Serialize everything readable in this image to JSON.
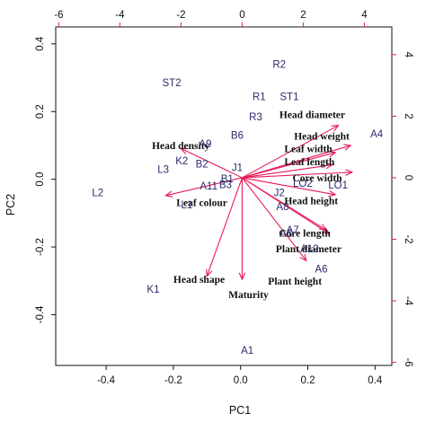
{
  "chart_data": {
    "type": "scatter",
    "title": "",
    "xlabel": "PC1",
    "ylabel": "PC2",
    "xlim": [
      -0.55,
      0.45
    ],
    "ylim": [
      -0.55,
      0.45
    ],
    "x_ticks": [
      "-0.4",
      "-0.2",
      "0.0",
      "0.2",
      "0.4"
    ],
    "y_ticks": [
      "-0.4",
      "-0.2",
      "0.0",
      "0.2",
      "0.4"
    ],
    "x_tick_values": [
      -0.4,
      -0.2,
      0.0,
      0.2,
      0.4
    ],
    "y_tick_values": [
      -0.4,
      -0.2,
      0.0,
      0.2,
      0.4
    ],
    "top_axis": {
      "lim": [
        -6.1,
        4.9
      ],
      "tick_values": [
        -6,
        -4,
        -2,
        0,
        2,
        4
      ],
      "ticks": [
        "-6",
        "-4",
        "-2",
        "0",
        "2",
        "4"
      ]
    },
    "right_axis": {
      "lim": [
        -6.1,
        4.9
      ],
      "tick_values": [
        -6,
        -4,
        -2,
        0,
        2,
        4
      ],
      "ticks": [
        "-6",
        "-4",
        "-2",
        "0",
        "2",
        "4"
      ]
    },
    "grid": false,
    "observations": [
      {
        "label": "R2",
        "x": 0.115,
        "y": 0.34
      },
      {
        "label": "ST2",
        "x": -0.205,
        "y": 0.285
      },
      {
        "label": "R1",
        "x": 0.055,
        "y": 0.245
      },
      {
        "label": "ST1",
        "x": 0.145,
        "y": 0.245
      },
      {
        "label": "R3",
        "x": 0.045,
        "y": 0.185
      },
      {
        "label": "B6",
        "x": -0.01,
        "y": 0.13
      },
      {
        "label": "A9",
        "x": -0.105,
        "y": 0.105
      },
      {
        "label": "K2",
        "x": -0.175,
        "y": 0.055
      },
      {
        "label": "B2",
        "x": -0.115,
        "y": 0.045
      },
      {
        "label": "L3",
        "x": -0.23,
        "y": 0.03
      },
      {
        "label": "J1",
        "x": -0.01,
        "y": 0.035
      },
      {
        "label": "B1",
        "x": -0.04,
        "y": 0.002
      },
      {
        "label": "A11",
        "x": -0.095,
        "y": -0.02
      },
      {
        "label": "B3",
        "x": -0.045,
        "y": -0.015
      },
      {
        "label": "L2",
        "x": -0.425,
        "y": -0.04
      },
      {
        "label": "L1",
        "x": -0.16,
        "y": -0.075
      },
      {
        "label": "J2",
        "x": 0.115,
        "y": -0.04
      },
      {
        "label": "LO2",
        "x": 0.185,
        "y": -0.012
      },
      {
        "label": "LO1",
        "x": 0.29,
        "y": -0.017
      },
      {
        "label": "A4",
        "x": 0.405,
        "y": 0.135
      },
      {
        "label": "A8",
        "x": 0.125,
        "y": -0.08
      },
      {
        "label": "A7",
        "x": 0.155,
        "y": -0.15
      },
      {
        "label": "A5",
        "x": 0.135,
        "y": -0.16
      },
      {
        "label": "A12",
        "x": 0.205,
        "y": -0.205
      },
      {
        "label": "A6",
        "x": 0.24,
        "y": -0.265
      },
      {
        "label": "K1",
        "x": -0.26,
        "y": -0.325
      },
      {
        "label": "A1",
        "x": 0.02,
        "y": -0.505
      }
    ],
    "loadings": [
      {
        "label": "Head diameter",
        "x": 3.15,
        "y": 1.7,
        "lx": 1.22,
        "ly": 2.05
      },
      {
        "label": "Head weight",
        "x": 3.55,
        "y": 1.05,
        "lx": 1.7,
        "ly": 1.35
      },
      {
        "label": "Leaf width",
        "x": 3.05,
        "y": 0.82,
        "lx": 1.38,
        "ly": 0.95
      },
      {
        "label": "Leaf length",
        "x": 2.95,
        "y": 0.42,
        "lx": 1.38,
        "ly": 0.52
      },
      {
        "label": "Core width",
        "x": 3.6,
        "y": 0.18,
        "lx": 1.65,
        "ly": 0.0
      },
      {
        "label": "Head height",
        "x": 3.05,
        "y": -0.55,
        "lx": 1.38,
        "ly": -0.75
      },
      {
        "label": "Head density",
        "x": -2.0,
        "y": 0.95,
        "lx": -2.95,
        "ly": 1.05
      },
      {
        "label": "Leaf colour",
        "x": -2.5,
        "y": -0.58,
        "lx": -2.15,
        "ly": -0.8
      },
      {
        "label": "Core length",
        "x": 2.75,
        "y": -1.7,
        "lx": 1.2,
        "ly": -1.8
      },
      {
        "label": "Plant diameter",
        "x": 2.85,
        "y": -1.82,
        "lx": 1.1,
        "ly": -2.3
      },
      {
        "label": "Plant height",
        "x": 2.1,
        "y": -2.7,
        "lx": 0.85,
        "ly": -3.35
      },
      {
        "label": "Head shape",
        "x": -1.15,
        "y": -3.2,
        "lx": -2.25,
        "ly": -3.3
      },
      {
        "label": "Maturity",
        "x": 0.0,
        "y": -3.3,
        "lx": -0.45,
        "ly": -3.8
      }
    ],
    "colors": {
      "observation": "#2b2b6e",
      "arrow": "#e8195a",
      "axis": "#111111"
    }
  }
}
